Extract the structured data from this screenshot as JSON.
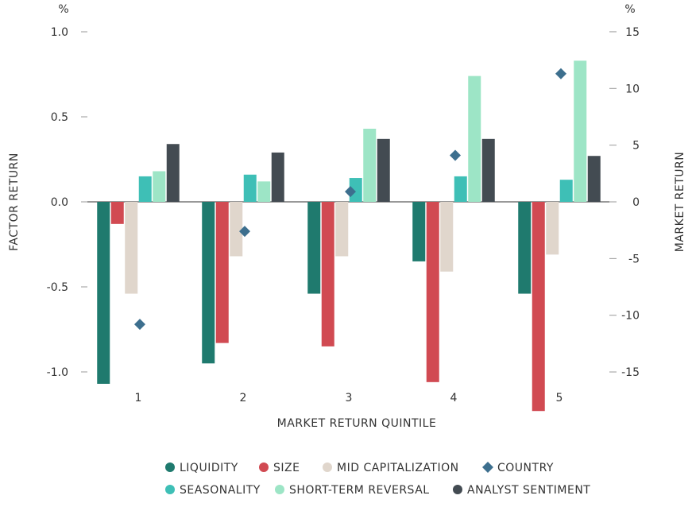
{
  "chart_data": {
    "type": "bar",
    "xlabel": "MARKET RETURN QUINTILE",
    "ylabel": "FACTOR RETURN",
    "ylabel_right": "MARKET RETURN",
    "unit_left": "%",
    "unit_right": "%",
    "ylim": [
      -1.2,
      1.0
    ],
    "ylim_right": [
      -18,
      15
    ],
    "yticks": [
      1.0,
      0.5,
      0.0,
      -0.5,
      -1.0
    ],
    "ytick_labels": [
      "1.0",
      "0.5",
      "0.0",
      "-0.5",
      "-1.0"
    ],
    "yticks_right": [
      15,
      10,
      5,
      0,
      -5,
      -10,
      -15
    ],
    "ytick_labels_right": [
      "15",
      "10",
      "5",
      "0",
      "-5",
      "-10",
      "-15"
    ],
    "categories": [
      "1",
      "2",
      "3",
      "4",
      "5"
    ],
    "series": [
      {
        "name": "LIQUIDITY",
        "color": "#1f7a6e",
        "values": [
          -1.07,
          -0.95,
          -0.54,
          -0.35,
          -0.54
        ]
      },
      {
        "name": "SIZE",
        "color": "#d14a52",
        "values": [
          -0.13,
          -0.83,
          -0.85,
          -1.06,
          -1.23
        ]
      },
      {
        "name": "MID CAPITALIZATION",
        "color": "#e0d6cc",
        "values": [
          -0.54,
          -0.32,
          -0.32,
          -0.41,
          -0.31
        ]
      },
      {
        "name": "SEASONALITY",
        "color": "#3ebfb6",
        "values": [
          0.15,
          0.16,
          0.14,
          0.15,
          0.13
        ]
      },
      {
        "name": "SHORT-TERM REVERSAL",
        "color": "#9de5c6",
        "values": [
          0.18,
          0.12,
          0.43,
          0.74,
          0.83
        ]
      },
      {
        "name": "ANALYST SENTIMENT",
        "color": "#434b52",
        "values": [
          0.34,
          0.29,
          0.37,
          0.37,
          0.27
        ]
      }
    ],
    "overlay_series": {
      "name": "COUNTRY",
      "color": "#3d6f8e",
      "marker": "diamond",
      "axis": "right",
      "values": [
        -10.8,
        -2.6,
        0.9,
        4.1,
        11.3
      ]
    },
    "legend": {
      "placement": "bottom",
      "rows": [
        [
          "LIQUIDITY",
          "SIZE",
          "MID CAPITALIZATION",
          "COUNTRY"
        ],
        [
          "SEASONALITY",
          "SHORT-TERM REVERSAL",
          "ANALYST SENTIMENT"
        ]
      ]
    },
    "grid": false
  }
}
